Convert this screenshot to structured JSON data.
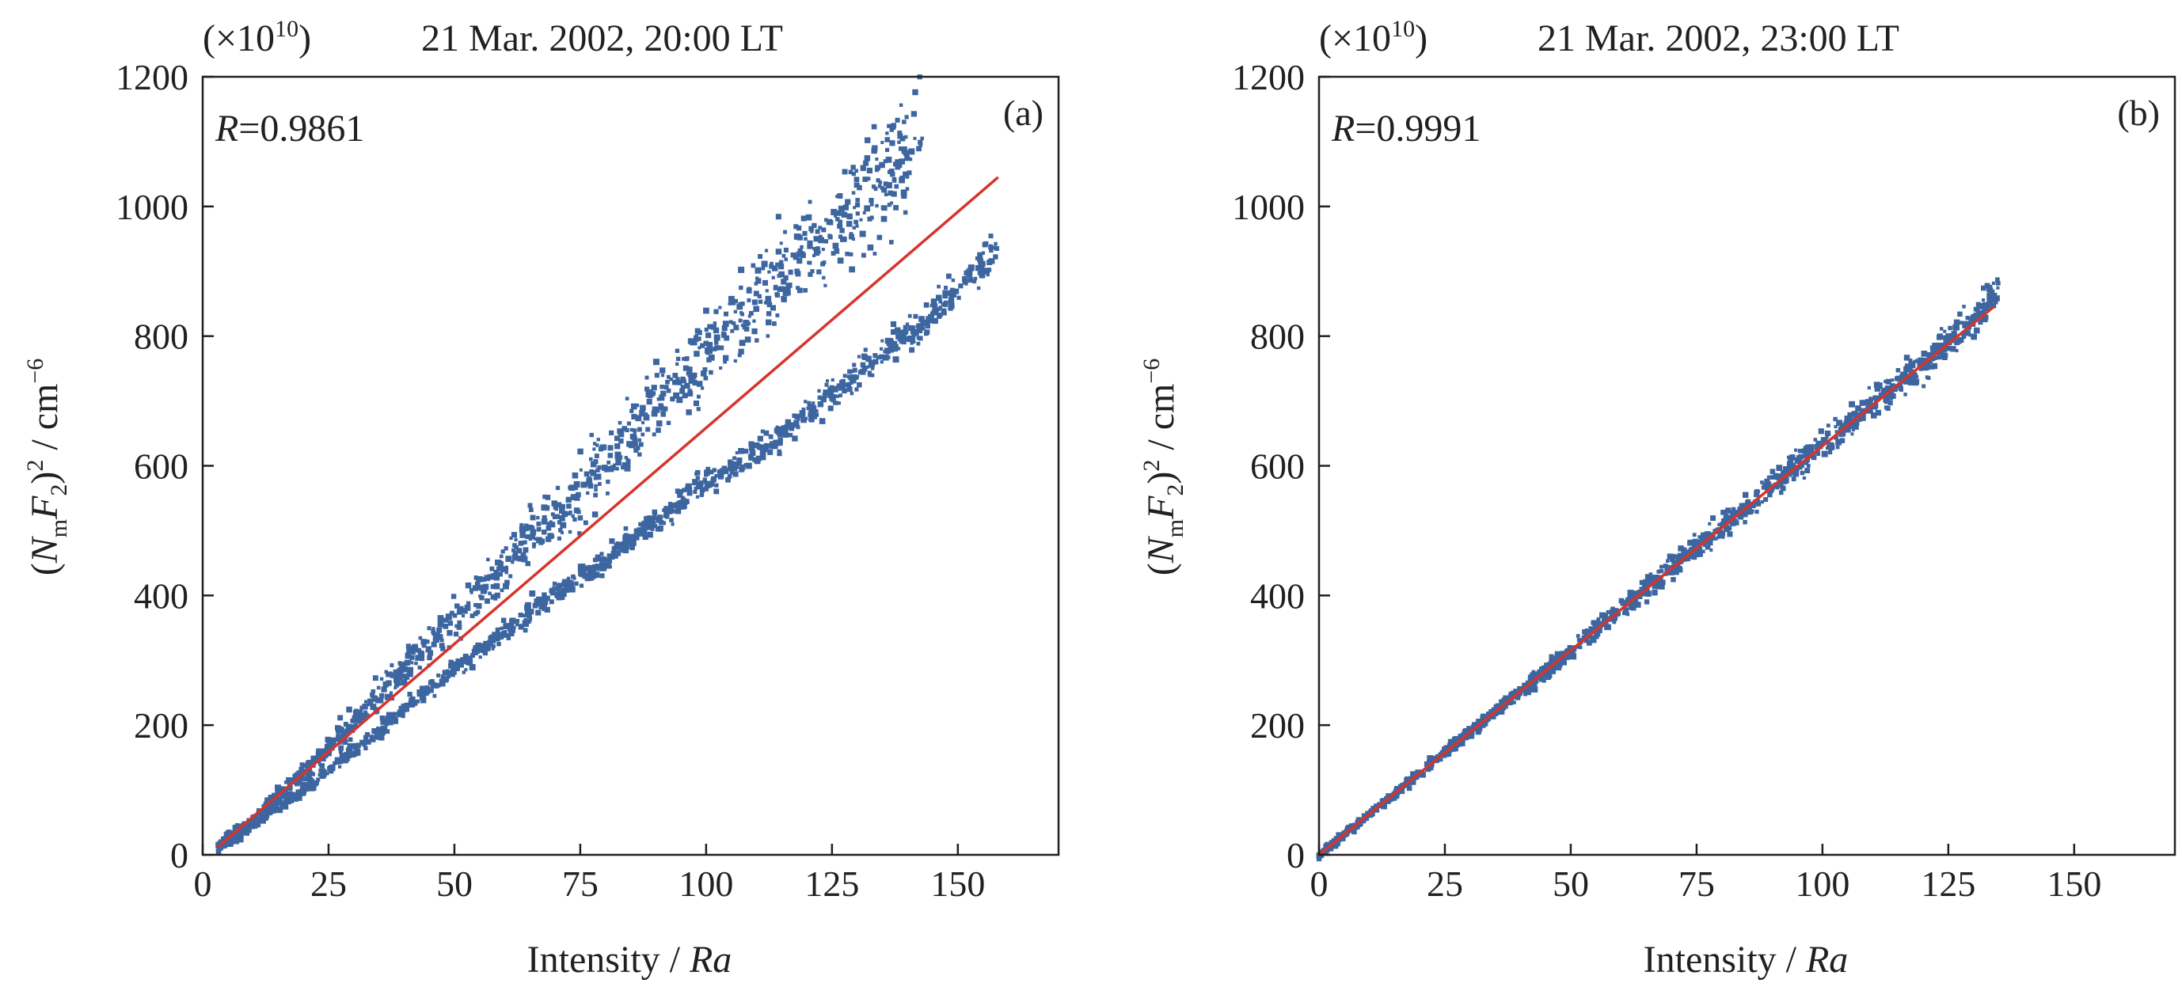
{
  "figure": {
    "panels": [
      {
        "scale_note": "(×10",
        "scale_exp": "10",
        "scale_close": ")",
        "title": "21 Mar. 2002, 20:00 LT",
        "r_label": "R",
        "r_value": "=0.9861",
        "tag": "(a)",
        "xlabel_text": "Intensity / ",
        "xlabel_unit": "Ra",
        "ylabel_parts": {
          "open": "(",
          "N": "N",
          "sub_m": "m",
          "F": "F",
          "sub_2": "2",
          "close": ")",
          "sup_2": "2",
          "unit": " / cm",
          "sup_unit": "−6"
        }
      },
      {
        "scale_note": "(×10",
        "scale_exp": "10",
        "scale_close": ")",
        "title": "21 Mar. 2002, 23:00 LT",
        "r_label": "R",
        "r_value": "=0.9991",
        "tag": "(b)",
        "xlabel_text": "Intensity / ",
        "xlabel_unit": "Ra",
        "ylabel_parts": {
          "open": "(",
          "N": "N",
          "sub_m": "m",
          "F": "F",
          "sub_2": "2",
          "close": ")",
          "sup_2": "2",
          "unit": " / cm",
          "sup_unit": "−6"
        }
      }
    ]
  },
  "colors": {
    "points": "#3d66a0",
    "fit_line": "#d6342c",
    "axis": "#231f20"
  },
  "chart_data": [
    {
      "type": "scatter",
      "title": "21 Mar. 2002, 20:00 LT",
      "xlabel": "Intensity / Ra",
      "ylabel": "(NmF2)^2 / cm^-6",
      "y_scale_note": "×10^10",
      "xlim": [
        0,
        170
      ],
      "ylim": [
        0,
        1200
      ],
      "xticks": [
        0,
        25,
        50,
        75,
        100,
        125,
        150
      ],
      "yticks": [
        0,
        200,
        400,
        600,
        800,
        1000,
        1200
      ],
      "grid": false,
      "annotation": "R=0.9861",
      "panel_tag": "(a)",
      "fit_line": {
        "x": [
          3,
          158
        ],
        "y": [
          12,
          1045
        ]
      },
      "branches": [
        {
          "x": [
            3,
            10,
            20,
            30,
            40,
            50,
            60,
            70,
            80,
            90,
            100,
            110,
            120,
            130,
            140,
            143
          ],
          "y": [
            12,
            55,
            125,
            205,
            285,
            365,
            445,
            525,
            600,
            695,
            775,
            855,
            935,
            995,
            1090,
            1100
          ]
        },
        {
          "x": [
            3,
            10,
            20,
            30,
            40,
            50,
            60,
            70,
            80,
            90,
            100,
            110,
            120,
            130,
            140,
            150,
            158
          ],
          "y": [
            10,
            45,
            100,
            160,
            225,
            285,
            345,
            405,
            455,
            515,
            575,
            620,
            680,
            740,
            800,
            870,
            935
          ]
        }
      ]
    },
    {
      "type": "scatter",
      "title": "21 Mar. 2002, 23:00 LT",
      "xlabel": "Intensity / Ra",
      "ylabel": "(NmF2)^2 / cm^-6",
      "y_scale_note": "×10^10",
      "xlim": [
        0,
        170
      ],
      "ylim": [
        0,
        1200
      ],
      "xticks": [
        0,
        25,
        50,
        75,
        100,
        125,
        150
      ],
      "yticks": [
        0,
        200,
        400,
        600,
        800,
        1000,
        1200
      ],
      "grid": false,
      "annotation": "R=0.9991",
      "panel_tag": "(b)",
      "fit_line": {
        "x": [
          0,
          134
        ],
        "y": [
          0,
          845
        ]
      },
      "branches": [
        {
          "x": [
            0,
            10,
            20,
            30,
            40,
            50,
            60,
            70,
            80,
            90,
            100,
            110,
            120,
            130,
            135
          ],
          "y": [
            0,
            62,
            126,
            190,
            252,
            315,
            378,
            442,
            505,
            570,
            632,
            695,
            758,
            825,
            875
          ]
        }
      ]
    }
  ]
}
